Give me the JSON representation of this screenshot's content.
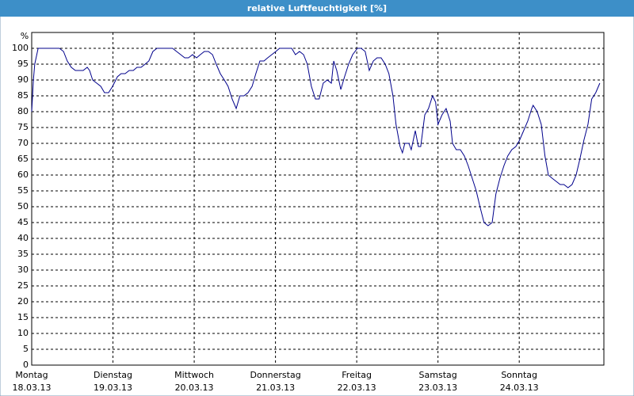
{
  "chart_data": {
    "type": "line",
    "title": "relative Luftfeuchtigkeit [%]",
    "y_unit": "%",
    "x": [
      0,
      0.5,
      0.9,
      1.9,
      3.5,
      5.9,
      8.2,
      9.4,
      10.5,
      11.7,
      12.9,
      14.0,
      15.2,
      16.4,
      17.1,
      18.0,
      19.2,
      20.4,
      21.5,
      22.7,
      23.9,
      25.3,
      26.4,
      27.6,
      28.8,
      30.0,
      31.1,
      32.3,
      33.5,
      34.6,
      35.8,
      37.0,
      38.1,
      39.3,
      40.5,
      41.6,
      42.8,
      44.0,
      45.2,
      46.3,
      47.5,
      48.7,
      49.8,
      51.0,
      52.2,
      53.4,
      54.5,
      55.7,
      56.9,
      58.0,
      59.2,
      60.4,
      61.5,
      62.7,
      63.9,
      65.1,
      66.2,
      67.4,
      68.6,
      69.7,
      70.9,
      72.1,
      73.2,
      74.4,
      75.6,
      76.8,
      77.9,
      79.1,
      80.3,
      81.4,
      82.6,
      83.8,
      84.9,
      86.1,
      87.3,
      88.5,
      89.2,
      90.1,
      91.3,
      92.4,
      93.6,
      94.8,
      96.2,
      97.3,
      98.5,
      99.7,
      100.9,
      102.0,
      103.2,
      104.4,
      105.5,
      106.7,
      107.6,
      108.8,
      109.5,
      110.2,
      111.4,
      112.1,
      113.3,
      114.2,
      114.9,
      116.1,
      117.2,
      118.4,
      119.3,
      120.0,
      121.2,
      122.4,
      123.6,
      124.3,
      125.4,
      126.6,
      127.8,
      128.9,
      130.1,
      131.3,
      132.4,
      133.6,
      134.8,
      136.0,
      137.1,
      138.3,
      139.5,
      140.6,
      141.8,
      143.0,
      144.1,
      145.3,
      146.5,
      147.7,
      148.1,
      149.3,
      150.5,
      151.6,
      152.6,
      153.7,
      154.9,
      156.1,
      157.2,
      158.4,
      159.6,
      160.8,
      161.9,
      163.1,
      164.3,
      165.4,
      166.6,
      167.8
    ],
    "series": [
      {
        "name": "relative Luftfeuchtigkeit",
        "color": "#00008b",
        "values": [
          80,
          90,
          95,
          100,
          100,
          100,
          100,
          99,
          96,
          94,
          93,
          93,
          93,
          94,
          93,
          90,
          89,
          88,
          86,
          86,
          88,
          91,
          92,
          92,
          93,
          93,
          94,
          94,
          95,
          96,
          99,
          100,
          100,
          100,
          100,
          100,
          99,
          98,
          97,
          97,
          98,
          97,
          98,
          99,
          99,
          98,
          95,
          92,
          90,
          88,
          84,
          81,
          85,
          85,
          86,
          88,
          92,
          96,
          96,
          97,
          98,
          99,
          100,
          100,
          100,
          100,
          98,
          99,
          98,
          95,
          88,
          84,
          84,
          89,
          90,
          89,
          96,
          93,
          87,
          91,
          95,
          98,
          100,
          100,
          99,
          93,
          96,
          97,
          97,
          95,
          92,
          85,
          76,
          69,
          67,
          70,
          70,
          68,
          74,
          69,
          69,
          79,
          81,
          85,
          83,
          76,
          79,
          81,
          77,
          70,
          68,
          68,
          66,
          63,
          59,
          55,
          50,
          45,
          44,
          45,
          54,
          59,
          63,
          66,
          68,
          69,
          71,
          74,
          77,
          81,
          82,
          80,
          76,
          66,
          60,
          59,
          58,
          57,
          57,
          56,
          57,
          60,
          65,
          71,
          76,
          84,
          86,
          89
        ]
      }
    ],
    "xlim": [
      0,
      169
    ],
    "xticks": [
      {
        "value": 0,
        "label": "Montag",
        "sublabel": "18.03.13"
      },
      {
        "value": 24,
        "label": "Dienstag",
        "sublabel": "19.03.13"
      },
      {
        "value": 48,
        "label": "Mittwoch",
        "sublabel": "20.03.13"
      },
      {
        "value": 72,
        "label": "Donnerstag",
        "sublabel": "21.03.13"
      },
      {
        "value": 96,
        "label": "Freitag",
        "sublabel": "22.03.13"
      },
      {
        "value": 120,
        "label": "Samstag",
        "sublabel": "23.03.13"
      },
      {
        "value": 144,
        "label": "Sonntag",
        "sublabel": "24.03.13"
      }
    ],
    "ylim": [
      0,
      105
    ],
    "yticks": [
      0,
      5,
      10,
      15,
      20,
      25,
      30,
      35,
      40,
      45,
      50,
      55,
      60,
      65,
      70,
      75,
      80,
      85,
      90,
      95,
      100
    ],
    "grid": true
  }
}
